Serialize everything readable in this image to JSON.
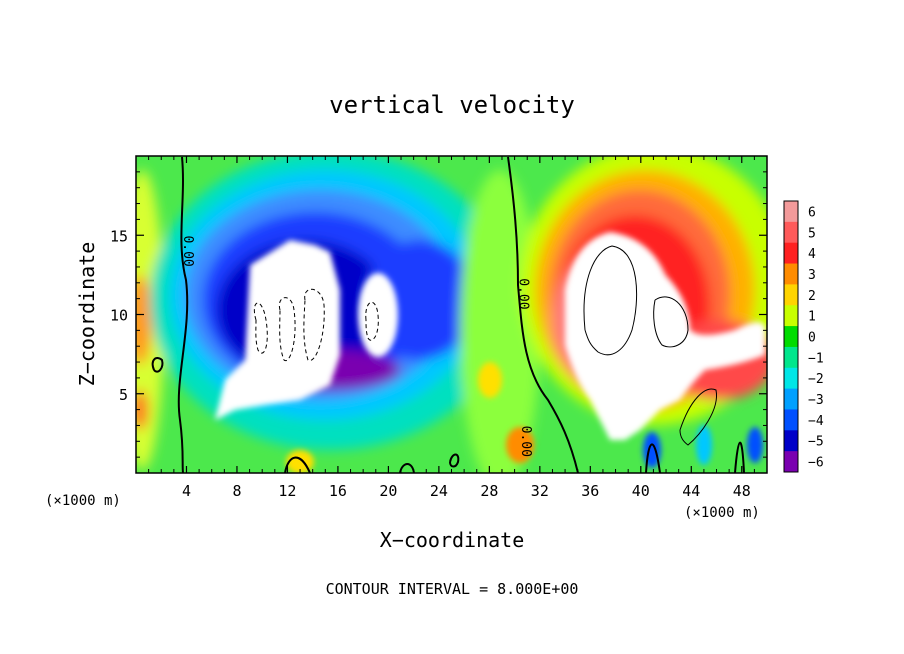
{
  "chart_data": {
    "type": "heatmap",
    "title": "vertical velocity",
    "xlabel": "X−coordinate",
    "ylabel": "Z−coordinate",
    "x_unit_left": "(×1000 m)",
    "x_unit_right": "(×1000 m)",
    "footer": "CONTOUR INTERVAL = 8.000E+00",
    "xlim": [
      0,
      50
    ],
    "ylim": [
      0,
      20
    ],
    "x_ticks": [
      4,
      8,
      12,
      16,
      20,
      24,
      28,
      32,
      36,
      40,
      44,
      48
    ],
    "y_ticks": [
      5,
      10,
      15
    ],
    "colorbar": {
      "levels": [
        6,
        5,
        4,
        3,
        2,
        1,
        0,
        -1,
        -2,
        -3,
        -4,
        -5,
        -6
      ],
      "colors": [
        "#f39a9a",
        "#ff5a5a",
        "#ff2020",
        "#ff8c00",
        "#ffd400",
        "#c8ff00",
        "#00dc00",
        "#00e68c",
        "#00e6e6",
        "#00a0ff",
        "#0050ff",
        "#0000c8",
        "#7a00b0"
      ],
      "saturated_color": "#ffffff"
    },
    "contour_labels": [
      {
        "text": "0.00",
        "x": 3.8,
        "z": 14.0
      },
      {
        "text": "0.00",
        "x": 30.4,
        "z": 11.3
      },
      {
        "text": "0.00",
        "x": 30.6,
        "z": 2.0
      }
    ]
  }
}
